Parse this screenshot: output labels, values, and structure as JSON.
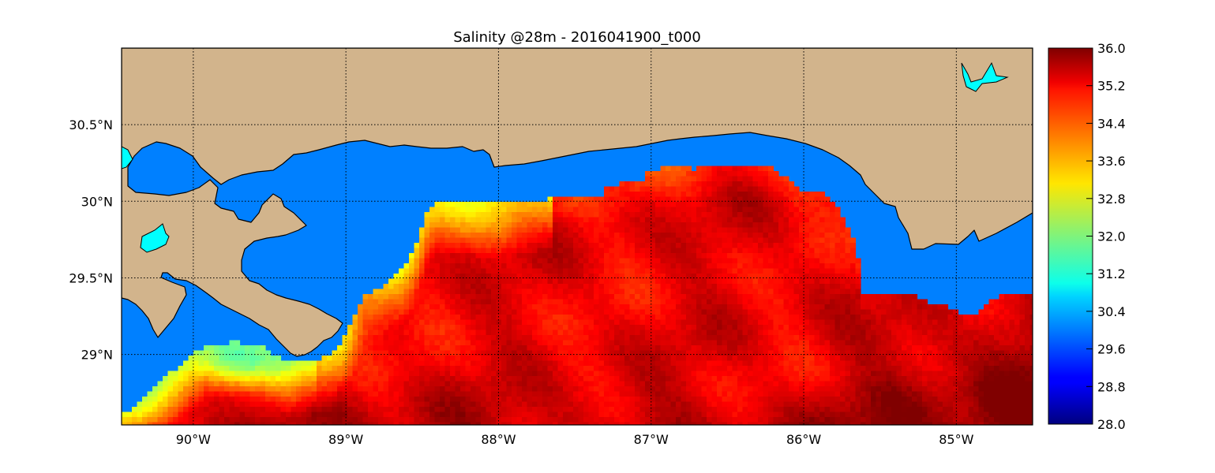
{
  "title": "Salinity @28m - 2016041900_t000",
  "colors": {
    "ocean_nodata": "#0080ff",
    "land": "#d2b48c",
    "inland_water": "#00ffff",
    "frame": "#000000",
    "grid": "#000000"
  },
  "map": {
    "lon_range": [
      -90.47,
      -84.5
    ],
    "lat_range": [
      28.54,
      31.0
    ],
    "lon_ticks": [
      {
        "value": -90,
        "label": "90°W"
      },
      {
        "value": -89,
        "label": "89°W"
      },
      {
        "value": -88,
        "label": "88°W"
      },
      {
        "value": -87,
        "label": "87°W"
      },
      {
        "value": -86,
        "label": "86°W"
      },
      {
        "value": -85,
        "label": "85°W"
      }
    ],
    "lat_ticks": [
      {
        "value": 30.5,
        "label": "30.5°N"
      },
      {
        "value": 30.0,
        "label": "30°N"
      },
      {
        "value": 29.5,
        "label": "29.5°N"
      },
      {
        "value": 29.0,
        "label": "29°N"
      }
    ],
    "grid": "dotted"
  },
  "colorbar": {
    "colormap": "jet",
    "min": 28.0,
    "max": 36.0,
    "tick_labels": [
      "36.0",
      "35.2",
      "34.4",
      "33.6",
      "32.8",
      "32.0",
      "31.2",
      "30.4",
      "29.6",
      "28.8",
      "28.0"
    ]
  }
}
